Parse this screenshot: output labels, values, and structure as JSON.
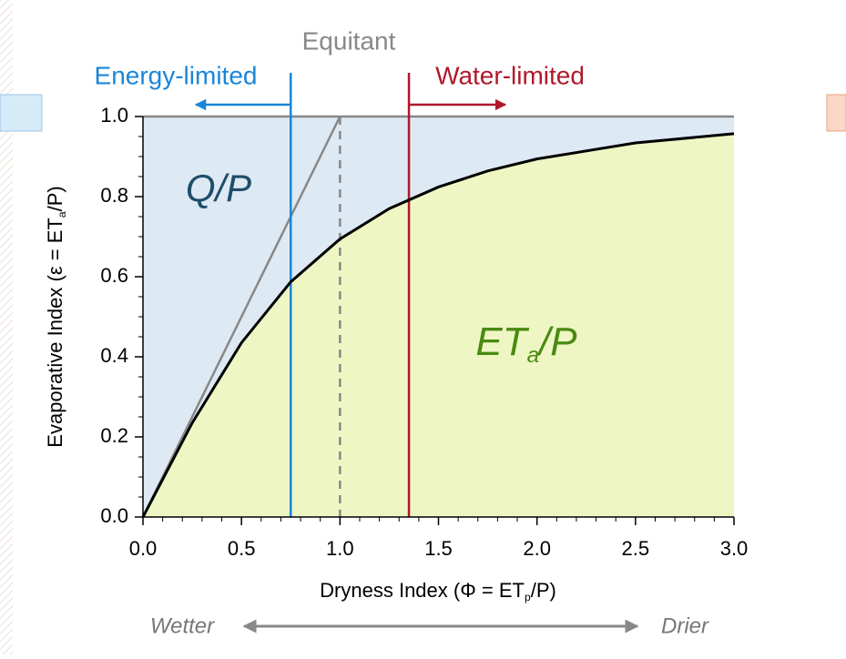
{
  "chart_data": {
    "type": "line",
    "x_label": [
      "Dryness Index (Φ = ",
      "ET",
      "p",
      "/P)"
    ],
    "y_label": [
      "Evaporative Index (ε = ",
      "ET",
      "a",
      "/P)"
    ],
    "x": [
      0,
      0.25,
      0.5,
      0.75,
      1.0,
      1.25,
      1.5,
      1.75,
      2.0,
      2.5,
      3.0
    ],
    "series": [
      {
        "color": "#000000",
        "values": [
          0,
          0.235,
          0.435,
          0.587,
          0.694,
          0.77,
          0.824,
          0.864,
          0.894,
          0.934,
          0.957
        ]
      }
    ],
    "xlim": [
      0,
      3
    ],
    "ylim": [
      0,
      1
    ],
    "xticks": [
      {
        "value": 0,
        "label": "0.0"
      },
      {
        "value": 0.5,
        "label": "0.5"
      },
      {
        "value": 1,
        "label": "1.0"
      },
      {
        "value": 1.5,
        "label": "1.5"
      },
      {
        "value": 2,
        "label": "2.0"
      },
      {
        "value": 2.5,
        "label": "2.5"
      },
      {
        "value": 3,
        "label": "3.0"
      }
    ],
    "yticks": [
      {
        "value": 0,
        "label": "0.0"
      },
      {
        "value": 0.2,
        "label": "0.2"
      },
      {
        "value": 0.4,
        "label": "0.4"
      },
      {
        "value": 0.6,
        "label": "0.6"
      },
      {
        "value": 0.8,
        "label": "0.8"
      },
      {
        "value": 1,
        "label": "1.0"
      }
    ],
    "reference_line": {
      "x": [
        0,
        1
      ],
      "y": [
        0,
        1
      ],
      "color": "#888888"
    },
    "vlines": [
      {
        "x": 0.75,
        "color": "#1a86d8",
        "label": "Energy-limited"
      },
      {
        "x": 1.0,
        "color": "#888888",
        "label": "Equitant",
        "dashed": true
      },
      {
        "x": 1.35,
        "color": "#b0182a",
        "label": "Water-limited"
      }
    ],
    "regions": [
      {
        "label": [
          "Q/P"
        ],
        "color": "#dde9f3"
      },
      {
        "label": [
          "ET",
          "a",
          "/P"
        ],
        "color": "#eef7c4"
      }
    ],
    "direction": {
      "left": "Wetter",
      "right": "Drier"
    }
  }
}
